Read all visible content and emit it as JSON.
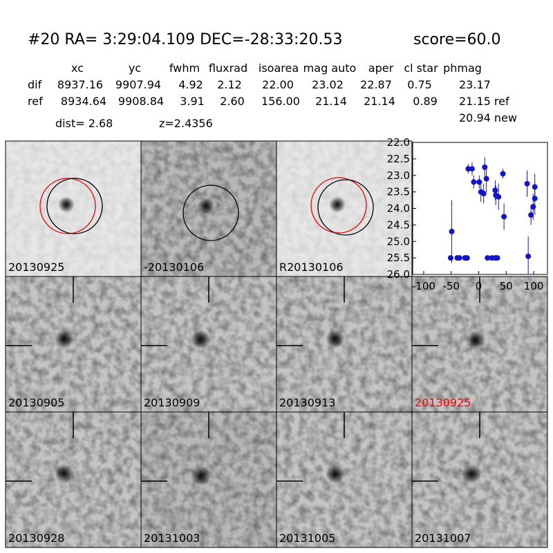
{
  "header": {
    "title": "#20   RA= 3:29:04.109 DEC=-28:33:20.53",
    "score": "score=60.0"
  },
  "table": {
    "columns": [
      "xc",
      "yc",
      "fwhm",
      "fluxrad",
      "isoarea",
      "mag auto",
      "aper",
      "cl star",
      "phmag"
    ],
    "rows": [
      [
        "dif",
        "8937.16",
        "9907.94",
        "4.92",
        "2.12",
        "22.00",
        "23.02",
        "22.87",
        "0.75",
        "23.17"
      ],
      [
        "ref",
        "8934.64",
        "9908.84",
        "3.91",
        "2.60",
        "156.00",
        "21.14",
        "21.14",
        "0.89",
        "21.15 ref"
      ]
    ],
    "extra": "20.94 new"
  },
  "dist": "dist=  2.68",
  "z": "z=2.4356",
  "panels": [
    "20130925",
    "-20130106",
    "R20130106",
    "20130905",
    "20130909",
    "20130913",
    "20130925",
    "20130928",
    "20131003",
    "20131005",
    "20131007"
  ],
  "chart_data": {
    "type": "scatter",
    "color": "#1414c8",
    "x": [
      -51,
      -49,
      -39,
      -35,
      -25,
      -21,
      -19,
      -12,
      -9,
      1,
      4,
      9,
      11,
      14,
      16,
      24,
      30,
      34,
      30,
      31,
      36,
      44,
      46,
      88,
      90,
      95,
      99,
      102,
      102
    ],
    "values": [
      25.5,
      24.7,
      25.5,
      25.5,
      25.5,
      25.5,
      22.8,
      22.8,
      23.2,
      23.2,
      23.5,
      23.55,
      22.75,
      23.1,
      25.5,
      25.5,
      25.5,
      25.5,
      23.45,
      23.6,
      23.65,
      22.95,
      24.25,
      23.25,
      25.45,
      24.2,
      23.95,
      23.35,
      23.7
    ],
    "errors": [
      0,
      0.95,
      0,
      0,
      0,
      0,
      0.15,
      0.2,
      0.2,
      0.2,
      0.3,
      0.3,
      0.3,
      0.4,
      0,
      0,
      0,
      0,
      0.3,
      0.3,
      0.4,
      0.15,
      0.4,
      0.4,
      0.6,
      0.3,
      0.4,
      0.4,
      0.5
    ],
    "xlim": [
      -120,
      125
    ],
    "xticks": [
      -100,
      -50,
      0,
      50,
      100
    ],
    "ylim": [
      26,
      22
    ],
    "yticks": [
      {
        "value": 22,
        "label": "22.0"
      },
      22.5,
      {
        "value": 23,
        "label": "23.0"
      },
      23.5,
      {
        "value": 24,
        "label": "24.0"
      },
      24.5,
      {
        "value": 25,
        "label": "25.0"
      },
      25.5,
      {
        "value": 26,
        "label": "26.0"
      }
    ]
  }
}
